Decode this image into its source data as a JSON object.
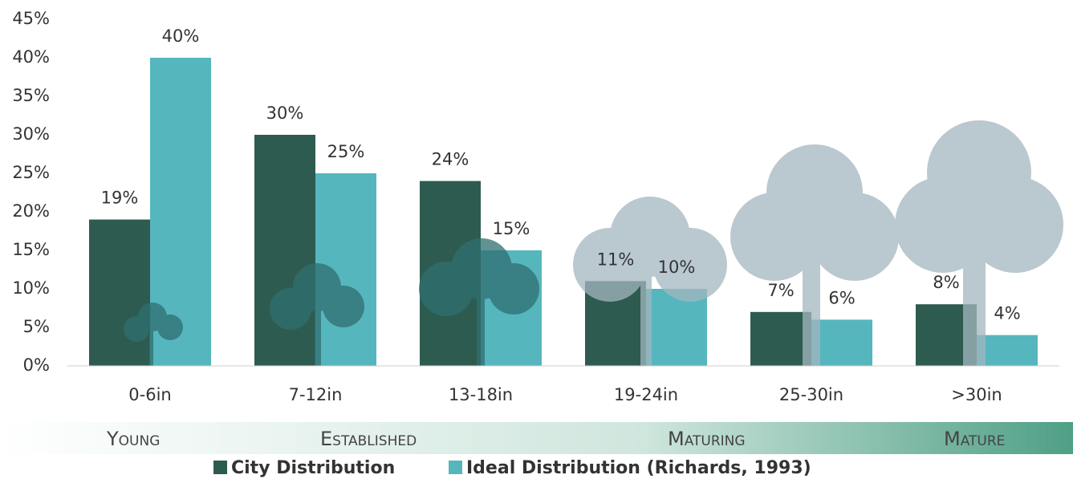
{
  "chart_data": {
    "type": "bar",
    "categories": [
      "0-6in",
      "7-12in",
      "13-18in",
      "19-24in",
      "25-30in",
      ">30in"
    ],
    "series": [
      {
        "name": "City Distribution",
        "color": "#2e5b50",
        "values": [
          19,
          30,
          24,
          11,
          7,
          8
        ],
        "value_labels": [
          "19%",
          "30%",
          "24%",
          "11%",
          "7%",
          "8%"
        ]
      },
      {
        "name": "Ideal Distribution (Richards, 1993)",
        "color": "#56b6be",
        "values": [
          40,
          25,
          15,
          10,
          6,
          4
        ],
        "value_labels": [
          "40%",
          "25%",
          "15%",
          "10%",
          "6%",
          "4%"
        ]
      }
    ],
    "ylim": [
      0,
      45
    ],
    "yticks": [
      {
        "value": 0,
        "label": "0%"
      },
      {
        "value": 5,
        "label": "5%"
      },
      {
        "value": 10,
        "label": "10%"
      },
      {
        "value": 15,
        "label": "15%"
      },
      {
        "value": 20,
        "label": "20%"
      },
      {
        "value": 25,
        "label": "25%"
      },
      {
        "value": 30,
        "label": "30%"
      },
      {
        "value": 35,
        "label": "35%"
      },
      {
        "value": 40,
        "label": "40%"
      },
      {
        "value": 45,
        "label": "45%"
      }
    ],
    "stage_labels": [
      "Young",
      "Established",
      "Maturing",
      "Mature"
    ]
  }
}
